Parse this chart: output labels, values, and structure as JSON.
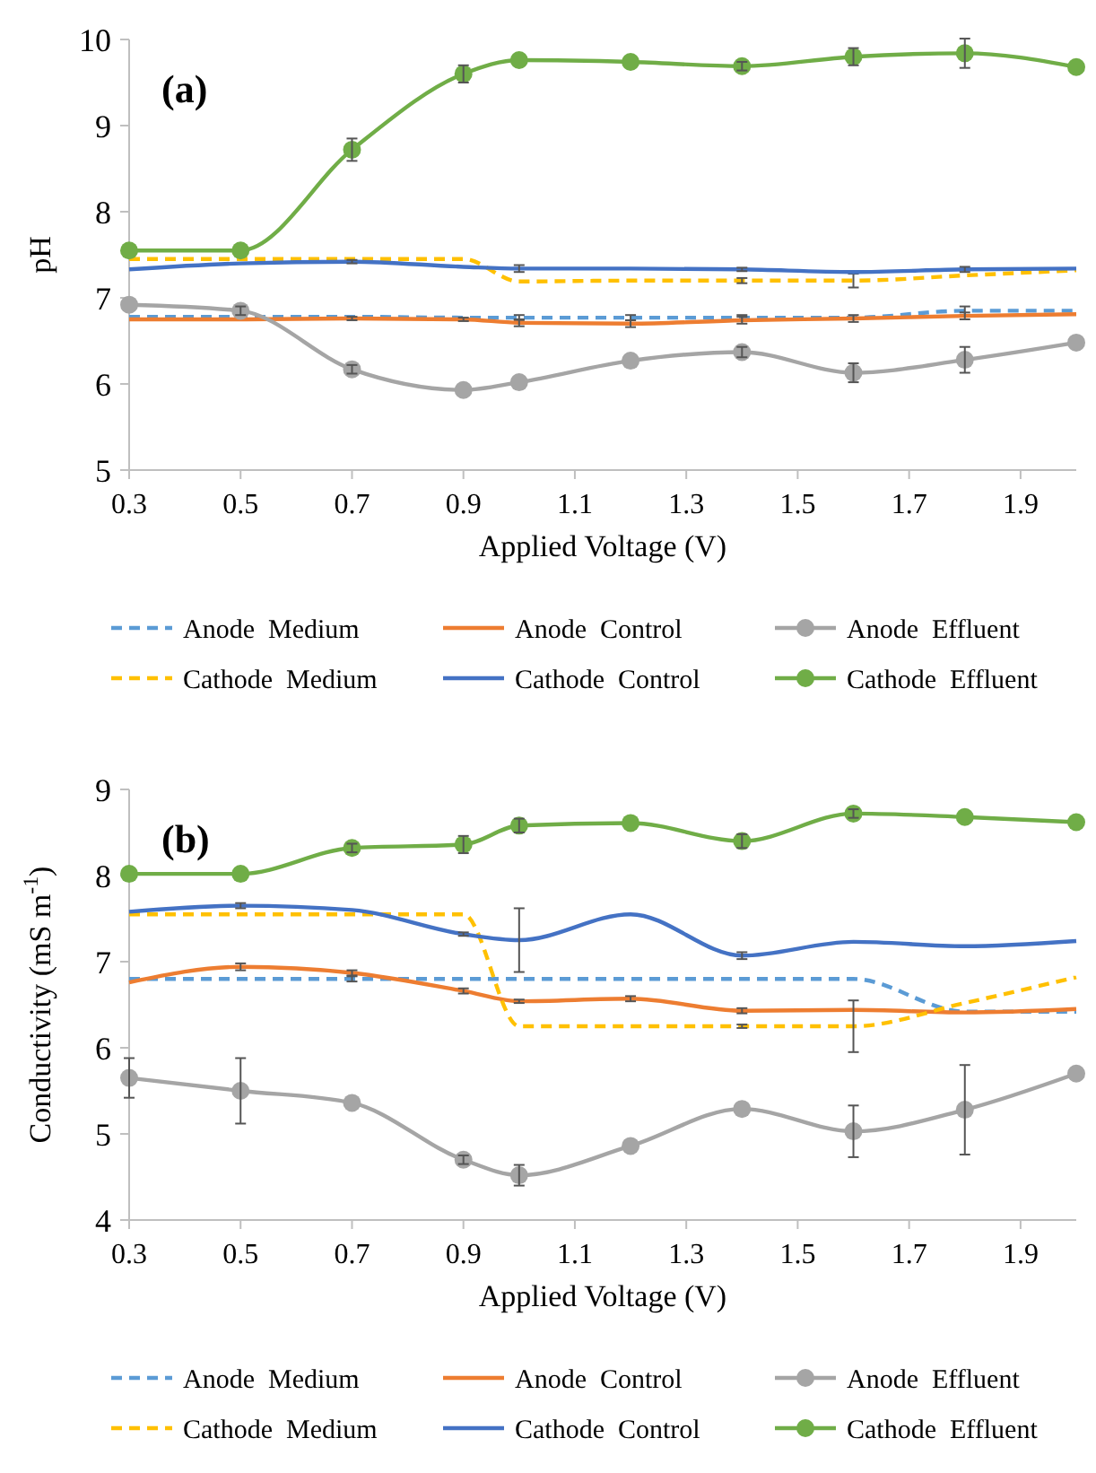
{
  "chart_data": [
    {
      "type": "line",
      "title": "(a)",
      "xlabel": "Applied Voltage (V)",
      "ylabel": "pH",
      "x": [
        0.3,
        0.5,
        0.7,
        0.9,
        1.0,
        1.2,
        1.4,
        1.6,
        1.8,
        2.0
      ],
      "xlim": [
        0.3,
        2.0
      ],
      "xticks": [
        {
          "value": 0.3,
          "label": "0.3"
        },
        {
          "value": 0.5,
          "label": "0.5"
        },
        {
          "value": 0.7,
          "label": "0.7"
        },
        {
          "value": 0.9,
          "label": "0.9"
        },
        {
          "value": 1.1,
          "label": "1.1"
        },
        {
          "value": 1.3,
          "label": "1.3"
        },
        {
          "value": 1.5,
          "label": "1.5"
        },
        {
          "value": 1.7,
          "label": "1.7"
        },
        {
          "value": 1.9,
          "label": "1.9"
        }
      ],
      "ylim": [
        5,
        10
      ],
      "yticks": [
        5,
        6,
        7,
        8,
        9,
        10
      ],
      "grid": false,
      "legend": "bottom",
      "series": [
        {
          "name": "Anode  Medium",
          "color": "#5b9bd5",
          "line_style": "dashed",
          "marker": "none",
          "values": [
            6.78,
            6.78,
            6.78,
            6.77,
            6.77,
            6.77,
            6.77,
            6.77,
            6.85,
            6.85
          ],
          "errors": [
            null,
            null,
            null,
            null,
            0.03,
            0.03,
            0.03,
            null,
            0.05,
            null
          ]
        },
        {
          "name": "Anode  Control",
          "color": "#ed7d31",
          "line_style": "solid",
          "marker": "none",
          "values": [
            6.75,
            6.75,
            6.76,
            6.75,
            6.71,
            6.7,
            6.74,
            6.76,
            6.79,
            6.81
          ],
          "errors": [
            null,
            null,
            0.02,
            0.02,
            0.04,
            0.04,
            0.04,
            0.04,
            0.04,
            null
          ]
        },
        {
          "name": "Anode  Effluent",
          "color": "#a5a5a5",
          "line_style": "solid",
          "marker": "circle",
          "values": [
            6.92,
            6.85,
            6.17,
            5.93,
            6.02,
            6.27,
            6.37,
            6.13,
            6.28,
            6.48
          ],
          "errors": [
            null,
            0.05,
            0.05,
            null,
            null,
            null,
            0.06,
            0.11,
            0.15,
            null
          ]
        },
        {
          "name": "Cathode  Medium",
          "color": "#ffc000",
          "line_style": "dashed",
          "marker": "none",
          "values": [
            7.45,
            7.45,
            7.45,
            7.45,
            7.19,
            7.2,
            7.2,
            7.2,
            7.26,
            7.32
          ],
          "errors": [
            null,
            null,
            null,
            null,
            null,
            null,
            0.03,
            0.08,
            null,
            null
          ]
        },
        {
          "name": "Cathode  Control",
          "color": "#4472c4",
          "line_style": "solid",
          "marker": "none",
          "values": [
            7.33,
            7.4,
            7.42,
            7.36,
            7.34,
            7.34,
            7.33,
            7.3,
            7.33,
            7.34
          ],
          "errors": [
            null,
            null,
            0.02,
            null,
            0.04,
            null,
            0.02,
            null,
            0.03,
            null
          ]
        },
        {
          "name": "Cathode  Effluent",
          "color": "#70ad47",
          "line_style": "solid",
          "marker": "circle",
          "values": [
            7.55,
            7.55,
            8.72,
            9.6,
            9.76,
            9.74,
            9.69,
            9.8,
            9.84,
            9.68
          ],
          "errors": [
            null,
            null,
            0.13,
            0.1,
            null,
            null,
            0.05,
            0.1,
            0.17,
            null
          ]
        }
      ]
    },
    {
      "type": "line",
      "title": "(b)",
      "xlabel": "Applied Voltage (V)",
      "ylabel": "Conductivity (mS m$^{-1}$)",
      "x": [
        0.3,
        0.5,
        0.7,
        0.9,
        1.0,
        1.2,
        1.4,
        1.6,
        1.8,
        2.0
      ],
      "xlim": [
        0.3,
        2.0
      ],
      "xticks": [
        {
          "value": 0.3,
          "label": "0.3"
        },
        {
          "value": 0.5,
          "label": "0.5"
        },
        {
          "value": 0.7,
          "label": "0.7"
        },
        {
          "value": 0.9,
          "label": "0.9"
        },
        {
          "value": 1.1,
          "label": "1.1"
        },
        {
          "value": 1.3,
          "label": "1.3"
        },
        {
          "value": 1.5,
          "label": "1.5"
        },
        {
          "value": 1.7,
          "label": "1.7"
        },
        {
          "value": 1.9,
          "label": "1.9"
        }
      ],
      "ylim": [
        4,
        9
      ],
      "yticks": [
        4,
        5,
        6,
        7,
        8,
        9
      ],
      "grid": false,
      "legend": "bottom",
      "series": [
        {
          "name": "Anode  Medium",
          "color": "#5b9bd5",
          "line_style": "dashed",
          "marker": "none",
          "values": [
            6.8,
            6.8,
            6.8,
            6.8,
            6.8,
            6.8,
            6.8,
            6.8,
            6.42,
            6.42
          ],
          "errors": [
            null,
            null,
            0.03,
            null,
            null,
            null,
            null,
            null,
            null,
            null
          ]
        },
        {
          "name": "Anode  Control",
          "color": "#ed7d31",
          "line_style": "solid",
          "marker": "none",
          "values": [
            6.76,
            6.94,
            6.87,
            6.66,
            6.54,
            6.57,
            6.43,
            6.44,
            6.41,
            6.45
          ],
          "errors": [
            null,
            0.04,
            0.03,
            0.03,
            0.02,
            0.03,
            0.03,
            null,
            null,
            null
          ]
        },
        {
          "name": "Anode  Effluent",
          "color": "#a5a5a5",
          "line_style": "solid",
          "marker": "circle",
          "values": [
            5.65,
            5.5,
            5.36,
            4.7,
            4.52,
            4.86,
            5.29,
            5.03,
            5.28,
            5.7
          ],
          "errors": [
            0.23,
            0.38,
            null,
            0.05,
            0.12,
            null,
            null,
            0.3,
            0.52,
            null
          ]
        },
        {
          "name": "Cathode  Medium",
          "color": "#ffc000",
          "line_style": "dashed",
          "marker": "none",
          "values": [
            7.55,
            7.55,
            7.55,
            7.55,
            6.25,
            6.25,
            6.25,
            6.25,
            6.52,
            6.82
          ],
          "errors": [
            null,
            null,
            null,
            null,
            null,
            null,
            0.02,
            0.3,
            null,
            null
          ]
        },
        {
          "name": "Cathode  Control",
          "color": "#4472c4",
          "line_style": "solid",
          "marker": "none",
          "values": [
            7.58,
            7.65,
            7.6,
            7.32,
            7.25,
            7.55,
            7.07,
            7.23,
            7.18,
            7.24
          ],
          "errors": [
            null,
            0.03,
            null,
            0.02,
            0.37,
            null,
            0.04,
            null,
            null,
            null
          ]
        },
        {
          "name": "Cathode  Effluent",
          "color": "#70ad47",
          "line_style": "solid",
          "marker": "circle",
          "values": [
            8.02,
            8.02,
            8.32,
            8.36,
            8.58,
            8.61,
            8.4,
            8.72,
            8.68,
            8.62
          ],
          "errors": [
            null,
            null,
            0.05,
            0.1,
            0.08,
            null,
            0.08,
            0.05,
            null,
            null
          ]
        }
      ]
    }
  ]
}
